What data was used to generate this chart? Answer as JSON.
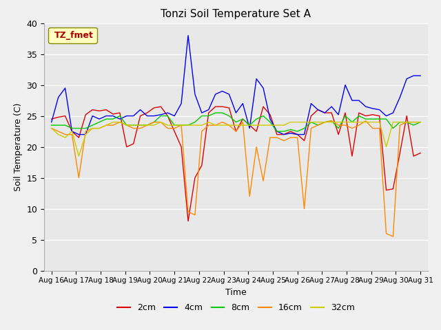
{
  "title": "Tonzi Soil Temperature Set A",
  "xlabel": "Time",
  "ylabel": "Soil Temperature (C)",
  "ylim": [
    0,
    40
  ],
  "yticks": [
    0,
    5,
    10,
    15,
    20,
    25,
    30,
    35,
    40
  ],
  "x_labels": [
    "Aug 16",
    "Aug 17",
    "Aug 18",
    "Aug 19",
    "Aug 20",
    "Aug 21",
    "Aug 22",
    "Aug 23",
    "Aug 24",
    "Aug 25",
    "Aug 26",
    "Aug 27",
    "Aug 28",
    "Aug 29",
    "Aug 30",
    "Aug 31"
  ],
  "legend_label": "TZ_fmet",
  "series_labels": [
    "2cm",
    "4cm",
    "8cm",
    "16cm",
    "32cm"
  ],
  "series_colors": [
    "#dd0000",
    "#0000ee",
    "#00cc00",
    "#ff8800",
    "#cccc00"
  ],
  "plot_bg": "#e8e8e8",
  "fig_bg": "#f0f0f0",
  "n_days": 16,
  "data_2cm": [
    24.5,
    24.8,
    25.0,
    22.5,
    21.5,
    25.2,
    26.0,
    25.8,
    26.0,
    25.3,
    25.5,
    20.0,
    20.5,
    25.0,
    25.5,
    26.3,
    26.5,
    25.0,
    22.5,
    20.0,
    8.0,
    15.0,
    17.0,
    25.5,
    26.5,
    26.5,
    26.3,
    22.5,
    24.5,
    23.5,
    22.5,
    26.5,
    25.2,
    22.0,
    22.0,
    22.5,
    22.0,
    21.0,
    25.0,
    26.0,
    25.5,
    25.5,
    22.0,
    25.5,
    18.5,
    25.5,
    25.0,
    25.2,
    25.0,
    13.0,
    13.2,
    19.0,
    25.0,
    18.5,
    19.0
  ],
  "data_4cm": [
    24.0,
    28.0,
    29.5,
    22.5,
    22.0,
    22.0,
    25.0,
    24.5,
    25.0,
    25.0,
    24.5,
    25.0,
    25.0,
    26.0,
    25.0,
    25.0,
    25.2,
    25.5,
    25.0,
    27.0,
    38.0,
    28.5,
    25.5,
    26.0,
    28.5,
    29.0,
    28.5,
    25.5,
    27.0,
    23.0,
    31.0,
    29.5,
    24.5,
    22.5,
    22.0,
    22.2,
    22.0,
    22.0,
    27.0,
    26.0,
    25.5,
    26.5,
    25.2,
    30.0,
    27.5,
    27.5,
    26.5,
    26.2,
    26.0,
    25.0,
    25.5,
    28.0,
    31.0,
    31.5,
    31.5
  ],
  "data_8cm": [
    23.5,
    23.5,
    23.5,
    23.0,
    23.0,
    23.0,
    23.5,
    24.0,
    24.5,
    24.5,
    25.0,
    23.5,
    23.5,
    23.5,
    23.5,
    24.0,
    25.0,
    25.0,
    23.5,
    23.5,
    23.5,
    24.0,
    25.0,
    25.0,
    25.5,
    25.5,
    25.0,
    24.0,
    24.5,
    23.5,
    24.5,
    25.0,
    24.0,
    22.5,
    22.5,
    22.8,
    22.5,
    23.0,
    24.0,
    23.5,
    24.0,
    24.2,
    23.0,
    25.0,
    24.0,
    25.0,
    24.5,
    24.5,
    24.5,
    24.5,
    23.0,
    24.0,
    24.0,
    23.5,
    24.0
  ],
  "data_16cm": [
    23.0,
    22.5,
    22.0,
    22.0,
    15.0,
    22.5,
    23.0,
    23.0,
    23.5,
    23.5,
    24.0,
    23.5,
    23.0,
    23.0,
    23.5,
    24.0,
    24.0,
    23.0,
    23.0,
    23.5,
    9.5,
    9.0,
    22.5,
    23.5,
    23.5,
    24.0,
    23.5,
    22.5,
    24.0,
    12.0,
    20.0,
    14.5,
    21.5,
    21.5,
    21.0,
    21.5,
    21.5,
    10.0,
    23.0,
    23.5,
    24.0,
    24.2,
    23.5,
    23.5,
    23.0,
    23.5,
    24.2,
    23.0,
    23.0,
    6.0,
    5.5,
    23.5,
    24.0,
    24.0,
    24.0
  ],
  "data_32cm": [
    23.0,
    22.0,
    21.5,
    22.5,
    18.5,
    22.0,
    23.0,
    23.0,
    23.5,
    24.0,
    24.0,
    23.5,
    23.5,
    23.5,
    23.5,
    23.5,
    24.0,
    23.5,
    23.5,
    23.5,
    23.5,
    23.5,
    23.5,
    24.0,
    23.5,
    23.5,
    23.5,
    23.5,
    23.5,
    23.5,
    23.5,
    23.5,
    23.5,
    23.5,
    23.5,
    24.0,
    24.0,
    24.0,
    24.0,
    24.0,
    24.0,
    24.0,
    24.0,
    24.0,
    24.0,
    24.0,
    24.0,
    24.0,
    24.0,
    20.0,
    24.0,
    24.0,
    24.0,
    24.0,
    24.0
  ]
}
